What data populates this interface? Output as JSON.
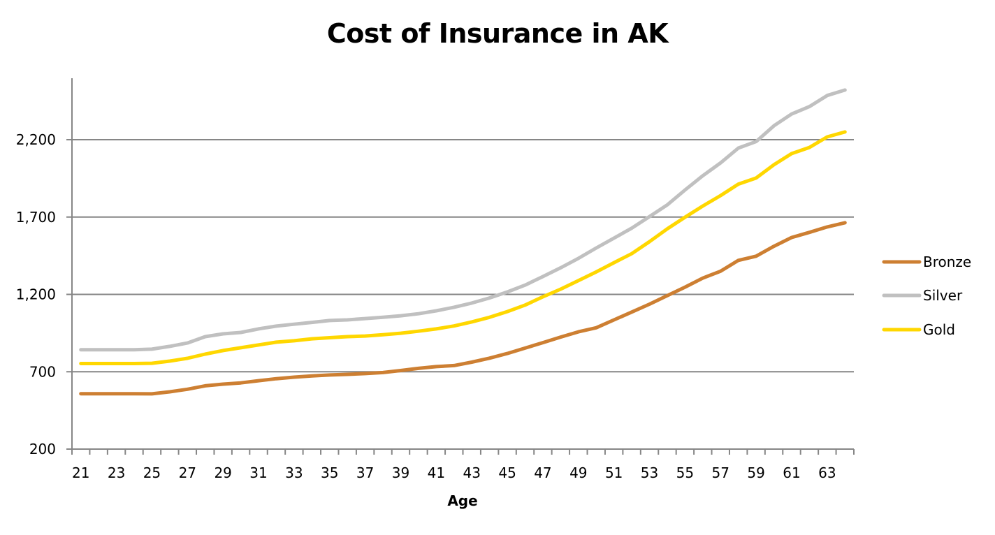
{
  "chart_data": {
    "type": "line",
    "title": "Cost of Insurance in AK",
    "xlabel": "Age",
    "ylabel": "",
    "ylim": [
      200,
      2600
    ],
    "yticks": [
      200,
      700,
      1200,
      1700,
      2200
    ],
    "ytick_labels": [
      "200",
      "700",
      "1,200",
      "1,700",
      "2,200"
    ],
    "grid": true,
    "legend_position": "right",
    "x": [
      21,
      22,
      23,
      24,
      25,
      26,
      27,
      28,
      29,
      30,
      31,
      32,
      33,
      34,
      35,
      36,
      37,
      38,
      39,
      40,
      41,
      42,
      43,
      44,
      45,
      46,
      47,
      48,
      49,
      50,
      51,
      52,
      53,
      54,
      55,
      56,
      57,
      58,
      59,
      60,
      61,
      62,
      63,
      64
    ],
    "xtick_labels": [
      "21",
      "23",
      "25",
      "27",
      "29",
      "31",
      "33",
      "35",
      "37",
      "39",
      "41",
      "43",
      "45",
      "47",
      "49",
      "51",
      "53",
      "55",
      "57",
      "59",
      "61",
      "63"
    ],
    "series": [
      {
        "name": "Bronze",
        "color": "#CD7F32",
        "values": [
          558,
          558,
          558,
          558,
          557,
          570,
          587,
          609,
          620,
          628,
          642,
          655,
          665,
          673,
          679,
          683,
          688,
          695,
          708,
          722,
          733,
          740,
          762,
          788,
          818,
          853,
          888,
          924,
          958,
          984,
          1035,
          1086,
          1137,
          1192,
          1247,
          1305,
          1350,
          1420,
          1447,
          1511,
          1568,
          1601,
          1636,
          1663
        ]
      },
      {
        "name": "Silver",
        "color": "#C0C0C0",
        "values": [
          842,
          842,
          842,
          842,
          846,
          864,
          886,
          927,
          945,
          954,
          977,
          995,
          1007,
          1019,
          1031,
          1035,
          1044,
          1052,
          1062,
          1075,
          1094,
          1117,
          1144,
          1177,
          1216,
          1260,
          1315,
          1372,
          1433,
          1500,
          1564,
          1628,
          1703,
          1779,
          1875,
          1967,
          2050,
          2146,
          2188,
          2290,
          2366,
          2414,
          2486,
          2521
        ]
      },
      {
        "name": "Gold",
        "color": "#FFD700",
        "values": [
          753,
          753,
          753,
          753,
          755,
          769,
          787,
          814,
          837,
          855,
          873,
          891,
          900,
          913,
          920,
          927,
          931,
          939,
          949,
          962,
          977,
          996,
          1022,
          1052,
          1089,
          1131,
          1184,
          1234,
          1289,
          1345,
          1405,
          1463,
          1541,
          1624,
          1699,
          1771,
          1839,
          1913,
          1952,
          2038,
          2110,
          2150,
          2218,
          2250
        ]
      }
    ]
  },
  "legend": {
    "items": [
      {
        "label": "Bronze",
        "color": "#CD7F32"
      },
      {
        "label": "Silver",
        "color": "#C0C0C0"
      },
      {
        "label": "Gold",
        "color": "#FFD700"
      }
    ]
  },
  "style": {
    "axis_color": "#868686",
    "grid_color": "#868686"
  }
}
